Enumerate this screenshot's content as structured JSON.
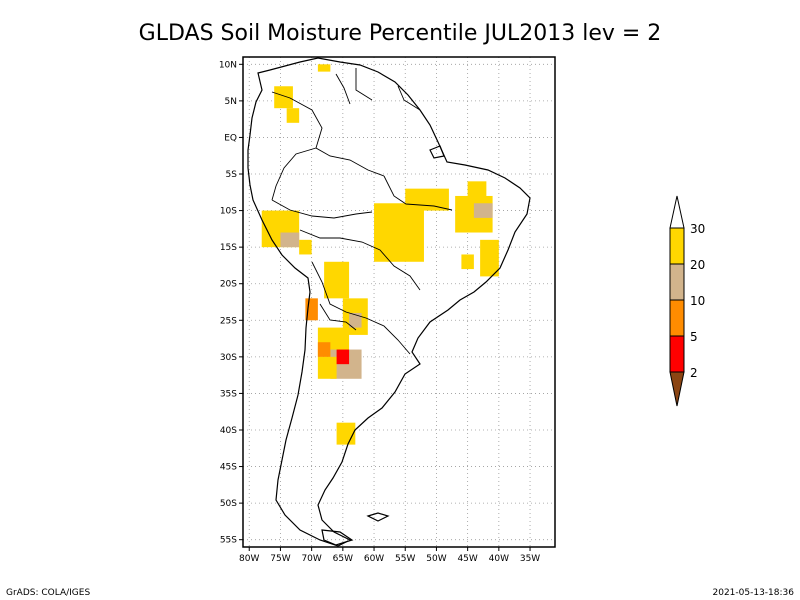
{
  "title": "GLDAS Soil Moisture Percentile JUL2013 lev = 2",
  "footer": {
    "left": "GrADS: COLA/IGES",
    "right": "2021-05-13-18:36"
  },
  "map": {
    "lon_range": [
      -81,
      -31
    ],
    "lat_range": [
      -56,
      11
    ],
    "lon_ticks": [
      "80W",
      "75W",
      "70W",
      "65W",
      "60W",
      "55W",
      "50W",
      "45W",
      "40W",
      "35W"
    ],
    "lon_tick_values": [
      -80,
      -75,
      -70,
      -65,
      -60,
      -55,
      -50,
      -45,
      -40,
      -35
    ],
    "lat_ticks": [
      "10N",
      "5N",
      "EQ",
      "5S",
      "10S",
      "15S",
      "20S",
      "25S",
      "30S",
      "35S",
      "40S",
      "45S",
      "50S",
      "55S"
    ],
    "lat_tick_values": [
      10,
      5,
      0,
      -5,
      -10,
      -15,
      -20,
      -25,
      -30,
      -35,
      -40,
      -45,
      -50,
      -55
    ],
    "grid": true
  },
  "colorbar": {
    "labels": [
      "30",
      "20",
      "10",
      "5",
      "2"
    ],
    "colors": {
      "above_30": "#ffffff",
      "c20_30": "#ffd700",
      "c10_20": "#d2b48c",
      "c5_10": "#ff8c00",
      "c2_5": "#ff0000",
      "below_2": "#8b4513"
    }
  },
  "anomaly_regions": [
    {
      "category": "c20_30",
      "lon": [
        -60,
        -52
      ],
      "lat": [
        -17,
        -9
      ]
    },
    {
      "category": "c20_30",
      "lon": [
        -55,
        -48
      ],
      "lat": [
        -10,
        -7
      ]
    },
    {
      "category": "c20_30",
      "lon": [
        -47,
        -41
      ],
      "lat": [
        -13,
        -8
      ]
    },
    {
      "category": "c20_30",
      "lon": [
        -45,
        -42
      ],
      "lat": [
        -9,
        -6
      ]
    },
    {
      "category": "c10_20",
      "lon": [
        -44,
        -41
      ],
      "lat": [
        -11,
        -9
      ]
    },
    {
      "category": "c20_30",
      "lon": [
        -43,
        -40
      ],
      "lat": [
        -19,
        -14
      ]
    },
    {
      "category": "c20_30",
      "lon": [
        -78,
        -72
      ],
      "lat": [
        -15,
        -10
      ]
    },
    {
      "category": "c10_20",
      "lon": [
        -75,
        -72
      ],
      "lat": [
        -15,
        -13
      ]
    },
    {
      "category": "c20_30",
      "lon": [
        -72,
        -70
      ],
      "lat": [
        -16,
        -14
      ]
    },
    {
      "category": "c20_30",
      "lon": [
        -68,
        -64
      ],
      "lat": [
        -22,
        -17
      ]
    },
    {
      "category": "c20_30",
      "lon": [
        -65,
        -61
      ],
      "lat": [
        -27,
        -22
      ]
    },
    {
      "category": "c10_20",
      "lon": [
        -64,
        -62
      ],
      "lat": [
        -26,
        -24
      ]
    },
    {
      "category": "c20_30",
      "lon": [
        -69,
        -64
      ],
      "lat": [
        -30,
        -26
      ]
    },
    {
      "category": "c10_20",
      "lon": [
        -67,
        -62
      ],
      "lat": [
        -33,
        -29
      ]
    },
    {
      "category": "c20_30",
      "lon": [
        -69,
        -66
      ],
      "lat": [
        -33,
        -30
      ]
    },
    {
      "category": "c5_10",
      "lon": [
        -69,
        -67
      ],
      "lat": [
        -30,
        -28
      ]
    },
    {
      "category": "c2_5",
      "lon": [
        -66,
        -64
      ],
      "lat": [
        -31,
        -29
      ]
    },
    {
      "category": "c20_30",
      "lon": [
        -66,
        -63
      ],
      "lat": [
        -42,
        -39
      ]
    },
    {
      "category": "c20_30",
      "lon": [
        -76,
        -73
      ],
      "lat": [
        7,
        4
      ]
    },
    {
      "category": "c20_30",
      "lon": [
        -74,
        -72
      ],
      "lat": [
        4,
        2
      ]
    },
    {
      "category": "c20_30",
      "lon": [
        -69,
        -67
      ],
      "lat": [
        10,
        9
      ]
    },
    {
      "category": "c5_10",
      "lon": [
        -71,
        -69
      ],
      "lat": [
        -25,
        -22
      ]
    },
    {
      "category": "c20_30",
      "lon": [
        -46,
        -44
      ],
      "lat": [
        -18,
        -16
      ]
    }
  ]
}
